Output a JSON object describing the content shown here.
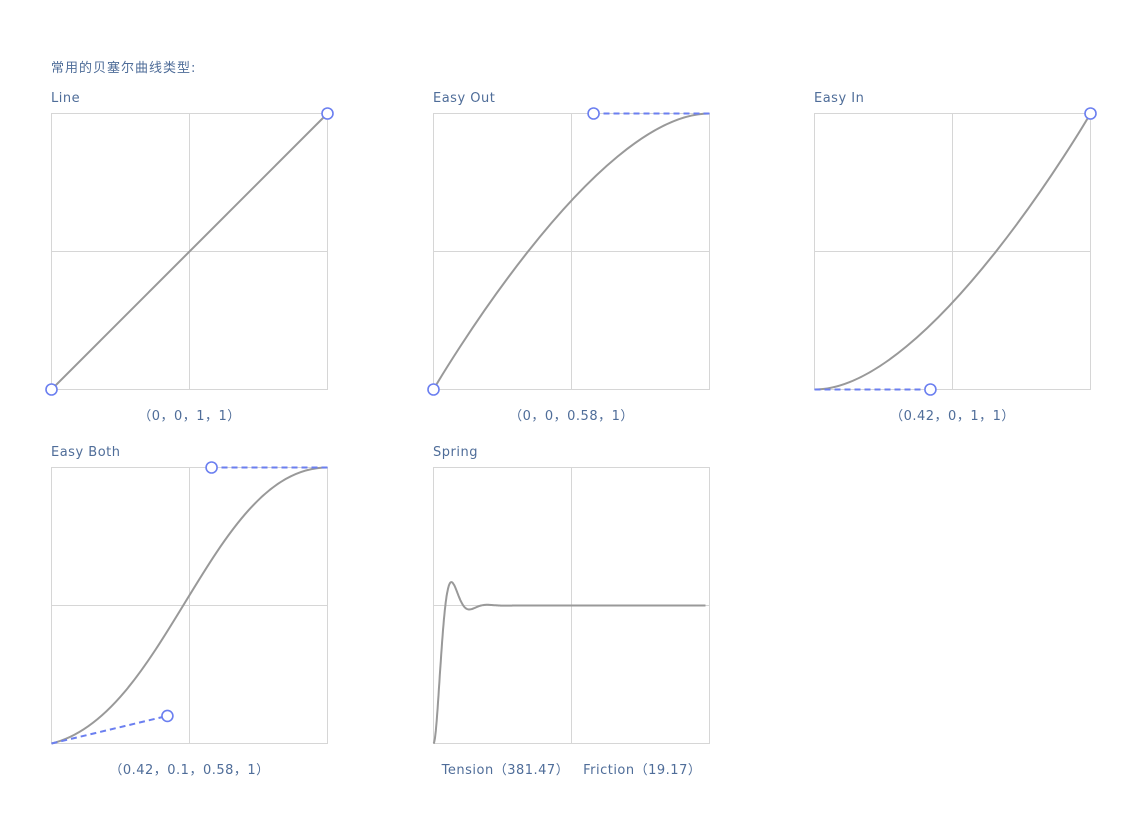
{
  "header": "常用的贝塞尔曲线类型:",
  "colors": {
    "curve": "#999999",
    "handle": "#6b7ff0",
    "grid": "#d6d6d6",
    "text": "#4f6d99"
  },
  "curves": [
    {
      "title": "Line",
      "p": [
        0,
        0,
        1,
        1
      ],
      "caption": "（0，0，1，1）"
    },
    {
      "title": "Easy Out",
      "p": [
        0,
        0,
        0.58,
        1
      ],
      "caption": "（0，0，0.58，1）"
    },
    {
      "title": "Easy In",
      "p": [
        0.42,
        0,
        1,
        1
      ],
      "caption": "（0.42，0，1，1）"
    },
    {
      "title": "Easy Both",
      "p": [
        0.42,
        0.1,
        0.58,
        1
      ],
      "caption": "（0.42，0.1，0.58，1）"
    },
    {
      "title": "Spring",
      "spring": {
        "tension": 381.47,
        "friction": 19.17
      },
      "caption": "Tension（381.47）   Friction（19.17）"
    }
  ]
}
